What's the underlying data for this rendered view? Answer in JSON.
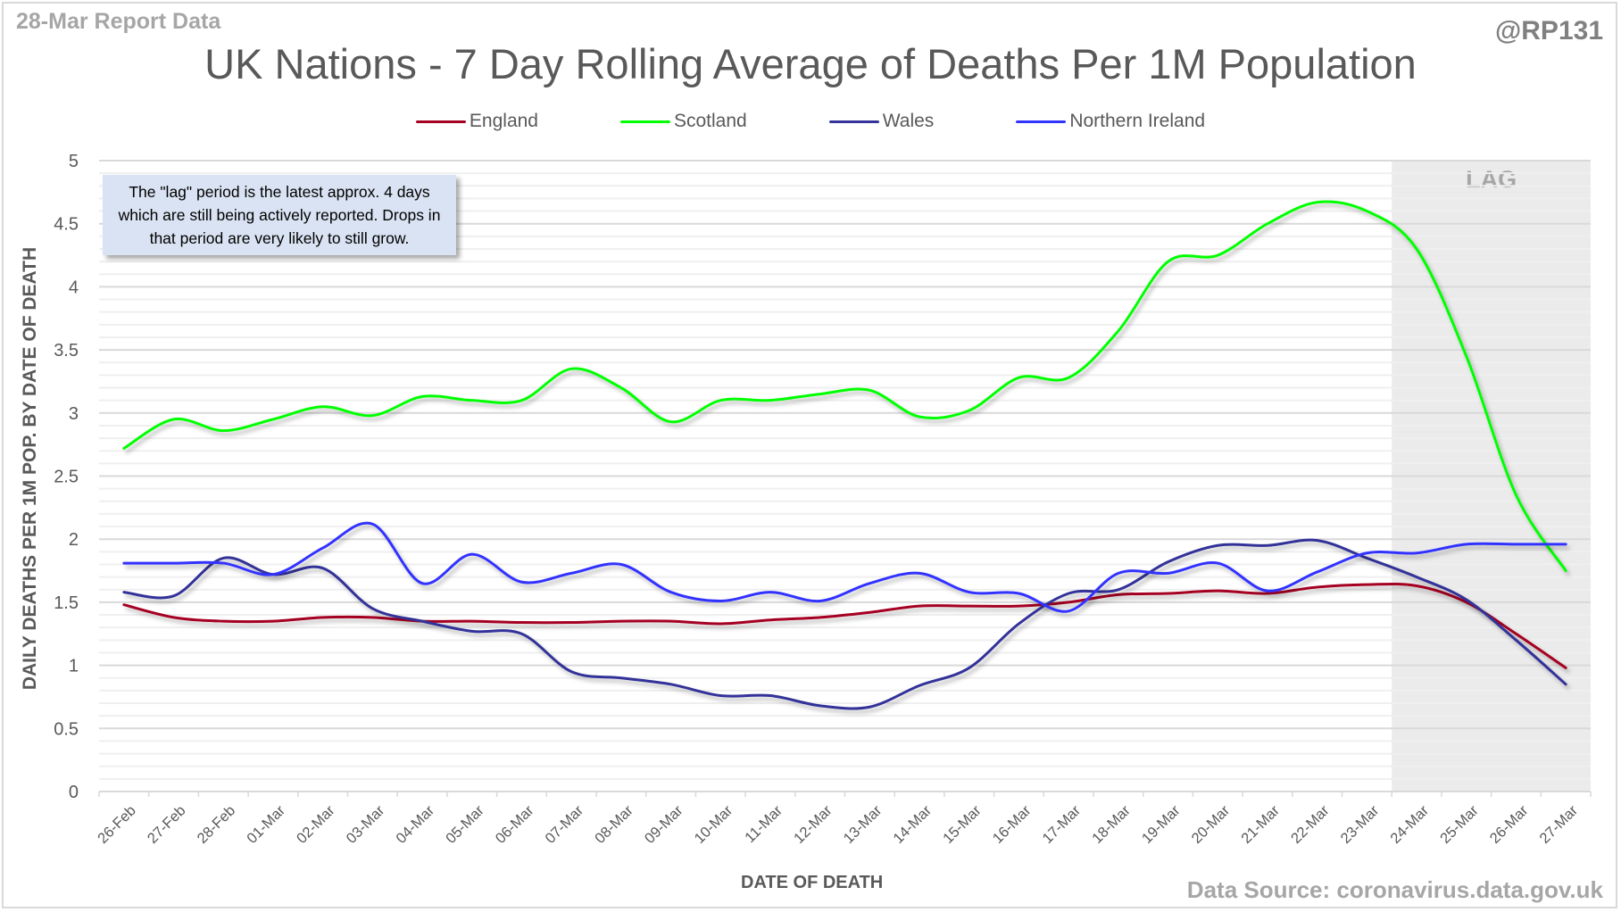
{
  "header": {
    "report_label": "28-Mar Report Data",
    "handle": "@RP131",
    "data_source": "Data Source: coronavirus.data.gov.uk"
  },
  "annotation": {
    "note_text": "The \"lag\" period is the latest approx. 4 days which are still being actively reported.  Drops in that period are very likely to still grow.",
    "lag_label": "LAG"
  },
  "chart_data": {
    "type": "line",
    "title": "UK Nations - 7 Day Rolling Average of Deaths Per 1M Population",
    "xlabel": "DATE OF DEATH",
    "ylabel": "DAILY DEATHS PER 1M POP. BY DATE OF DEATH",
    "ylim": [
      0,
      5
    ],
    "yticks": [
      0,
      0.5,
      1,
      1.5,
      2,
      2.5,
      3,
      3.5,
      4,
      4.5,
      5
    ],
    "ytick_labels": [
      "0",
      "0.5",
      "1",
      "1.5",
      "2",
      "2.5",
      "3",
      "3.5",
      "4",
      "4.5",
      "5"
    ],
    "minor_grid_step": 0.1,
    "grid": true,
    "legend_position": "top-center",
    "smoothed": true,
    "shaded_region": {
      "label": "LAG",
      "from_category": "24-Mar",
      "to_category": "27-Mar",
      "color": "#ebebeb"
    },
    "categories": [
      "26-Feb",
      "27-Feb",
      "28-Feb",
      "01-Mar",
      "02-Mar",
      "03-Mar",
      "04-Mar",
      "05-Mar",
      "06-Mar",
      "07-Mar",
      "08-Mar",
      "09-Mar",
      "10-Mar",
      "11-Mar",
      "12-Mar",
      "13-Mar",
      "14-Mar",
      "15-Mar",
      "16-Mar",
      "17-Mar",
      "18-Mar",
      "19-Mar",
      "20-Mar",
      "21-Mar",
      "22-Mar",
      "23-Mar",
      "24-Mar",
      "25-Mar",
      "26-Mar",
      "27-Mar"
    ],
    "series": [
      {
        "name": "England",
        "color": "#a50021",
        "values": [
          1.48,
          1.38,
          1.35,
          1.35,
          1.38,
          1.38,
          1.35,
          1.35,
          1.34,
          1.34,
          1.35,
          1.35,
          1.33,
          1.36,
          1.38,
          1.42,
          1.47,
          1.47,
          1.47,
          1.5,
          1.56,
          1.57,
          1.59,
          1.57,
          1.62,
          1.64,
          1.63,
          1.5,
          1.25,
          0.98
        ]
      },
      {
        "name": "Scotland",
        "color": "#00ff00",
        "values": [
          2.72,
          2.95,
          2.86,
          2.95,
          3.05,
          2.98,
          3.13,
          3.1,
          3.1,
          3.35,
          3.2,
          2.93,
          3.1,
          3.1,
          3.15,
          3.18,
          2.97,
          3.02,
          3.28,
          3.28,
          3.65,
          4.2,
          4.25,
          4.5,
          4.67,
          4.6,
          4.3,
          3.45,
          2.35,
          1.75
        ]
      },
      {
        "name": "Wales",
        "color": "#333399",
        "values": [
          1.58,
          1.55,
          1.85,
          1.72,
          1.77,
          1.45,
          1.35,
          1.27,
          1.25,
          0.95,
          0.9,
          0.85,
          0.76,
          0.76,
          0.68,
          0.67,
          0.84,
          0.98,
          1.33,
          1.57,
          1.6,
          1.82,
          1.95,
          1.95,
          1.99,
          1.85,
          1.7,
          1.52,
          1.2,
          0.85
        ]
      },
      {
        "name": "Northern Ireland",
        "color": "#3333ff",
        "values": [
          1.81,
          1.81,
          1.81,
          1.72,
          1.93,
          2.12,
          1.65,
          1.88,
          1.66,
          1.73,
          1.8,
          1.58,
          1.51,
          1.58,
          1.51,
          1.65,
          1.73,
          1.58,
          1.57,
          1.43,
          1.73,
          1.73,
          1.81,
          1.59,
          1.74,
          1.89,
          1.89,
          1.96,
          1.96,
          1.96
        ]
      }
    ]
  }
}
